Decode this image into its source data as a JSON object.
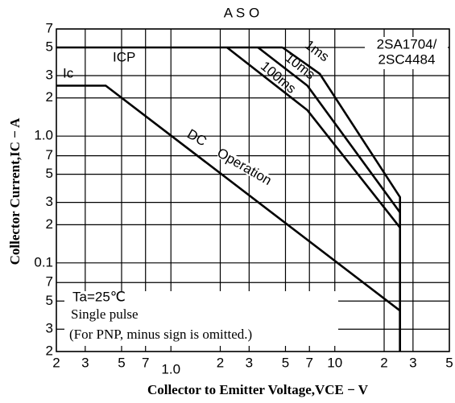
{
  "chart_data": {
    "type": "line",
    "title": "A S O",
    "device_labels": [
      "2SA1704/",
      "2SC4484"
    ],
    "x_label": "Collector to Emitter Voltage,VCE − V",
    "y_label": "Collector Current,IC − A",
    "x_scale": "log",
    "y_scale": "log",
    "grid": true,
    "xlim": [
      0.2,
      50
    ],
    "ylim": [
      0.02,
      7
    ],
    "xticks": [
      {
        "value": 0.2,
        "label": "2"
      },
      {
        "value": 0.3,
        "label": "3"
      },
      {
        "value": 0.5,
        "label": "5"
      },
      {
        "value": 0.7,
        "label": "7"
      },
      {
        "value": 1,
        "label": "1.0"
      },
      {
        "value": 2,
        "label": "2"
      },
      {
        "value": 3,
        "label": "3"
      },
      {
        "value": 5,
        "label": "5"
      },
      {
        "value": 7,
        "label": "7"
      },
      10,
      {
        "value": 20,
        "label": "2"
      },
      {
        "value": 30,
        "label": "3"
      },
      {
        "value": 50,
        "label": "5"
      }
    ],
    "yticks": [
      {
        "value": 7,
        "label": "7"
      },
      {
        "value": 5,
        "label": "5"
      },
      {
        "value": 3,
        "label": "3"
      },
      {
        "value": 2,
        "label": "2"
      },
      {
        "value": 1,
        "label": "1.0"
      },
      {
        "value": 0.7,
        "label": "7"
      },
      {
        "value": 0.5,
        "label": "5"
      },
      {
        "value": 0.3,
        "label": "3"
      },
      {
        "value": 0.2,
        "label": "2"
      },
      0.1,
      {
        "value": 0.07,
        "label": "7"
      },
      {
        "value": 0.05,
        "label": "5"
      },
      {
        "value": 0.03,
        "label": "3"
      },
      {
        "value": 0.02,
        "label": "2"
      }
    ],
    "series": [
      {
        "name": "ICP",
        "color": "#000000",
        "x": [
          0.2,
          4.8
        ],
        "values": [
          5,
          5
        ]
      },
      {
        "name": "1ms",
        "color": "#000000",
        "x": [
          4.8,
          8.1,
          25,
          25
        ],
        "values": [
          5,
          3.1,
          0.33,
          0.02
        ]
      },
      {
        "name": "10ms",
        "color": "#000000",
        "x": [
          3.4,
          6.8,
          25
        ],
        "values": [
          5,
          2.5,
          0.25
        ]
      },
      {
        "name": "100ms",
        "color": "#000000",
        "x": [
          2.2,
          6.8,
          25
        ],
        "values": [
          5,
          1.6,
          0.19
        ]
      },
      {
        "name": "DC",
        "color": "#000000",
        "x": [
          0.2,
          0.4,
          25,
          25
        ],
        "values": [
          2.5,
          2.5,
          0.042,
          0.02
        ]
      }
    ],
    "annotations": [
      "Operation",
      "Ic"
    ],
    "notes": [
      "Ta=25℃",
      "Single pulse",
      "(For PNP, minus sign is omitted.)"
    ]
  }
}
